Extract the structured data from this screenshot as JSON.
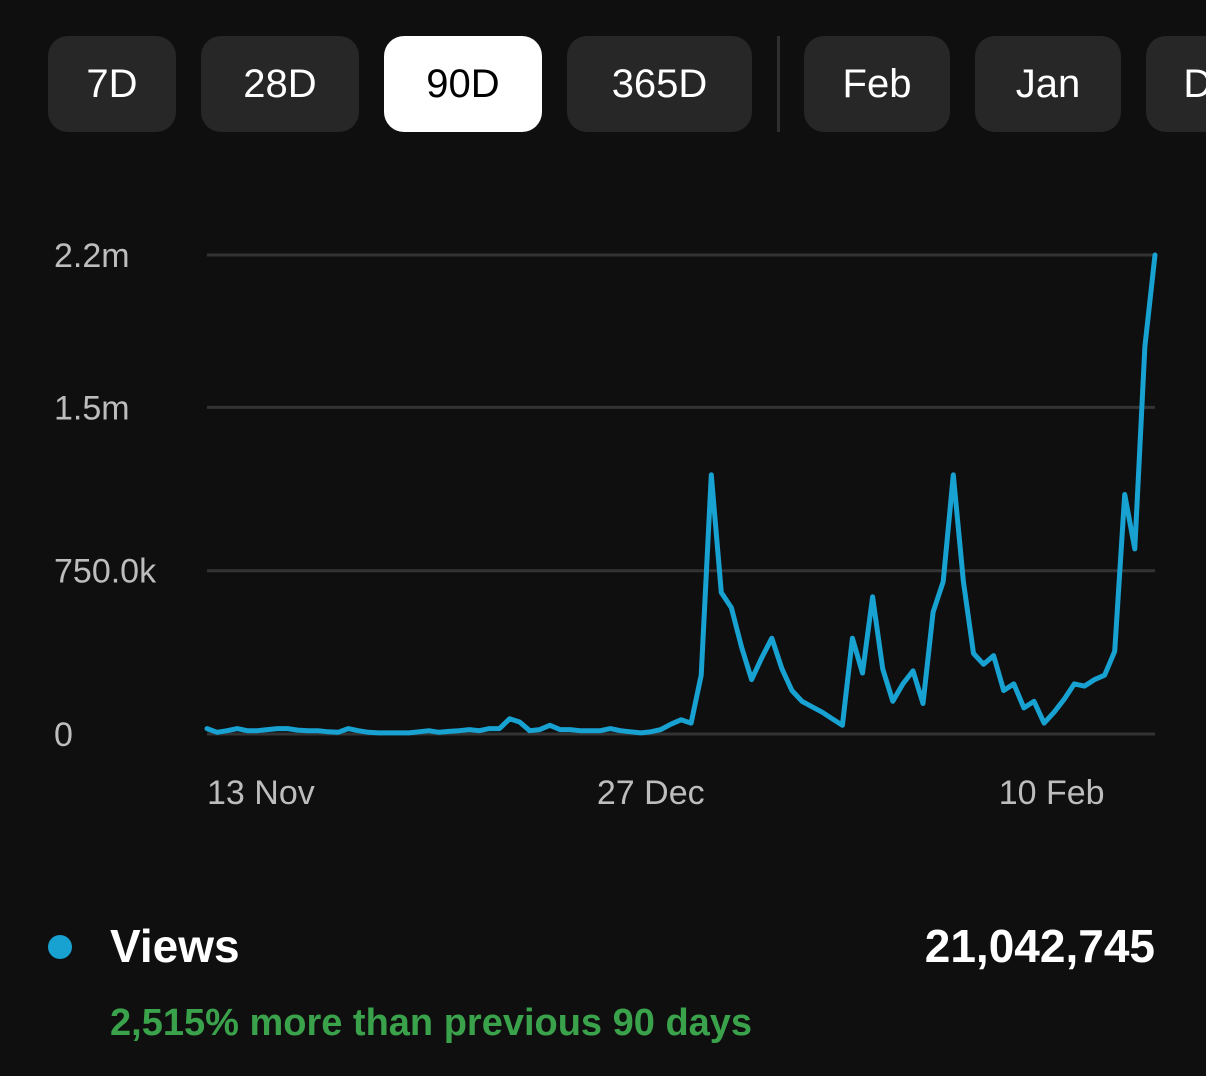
{
  "range_selector": {
    "options": [
      {
        "label": "7D",
        "selected": false
      },
      {
        "label": "28D",
        "selected": false
      },
      {
        "label": "90D",
        "selected": true
      },
      {
        "label": "365D",
        "selected": false
      }
    ],
    "months": [
      {
        "label": "Feb",
        "selected": false
      },
      {
        "label": "Jan",
        "selected": false
      },
      {
        "label": "Dec",
        "selected": false
      }
    ]
  },
  "colors": {
    "background": "#0f0f0f",
    "pill": "#272727",
    "pill_selected": "#ffffff",
    "series": "#17a2d2",
    "positive": "#3aa24b",
    "gridline": "#333333",
    "axis_text": "#bdbdbd"
  },
  "chart_data": {
    "type": "line",
    "ylim": [
      0,
      2200000
    ],
    "yticks": [
      {
        "value": 0,
        "label": "0"
      },
      {
        "value": 750000,
        "label": "750.0k"
      },
      {
        "value": 1500000,
        "label": "1.5m"
      },
      {
        "value": 2200000,
        "label": "2.2m"
      }
    ],
    "xticks": [
      {
        "index": 0,
        "label": "13 Nov"
      },
      {
        "index": 44,
        "label": "27 Dec"
      },
      {
        "index": 89,
        "label": "10 Feb"
      }
    ],
    "grid": true,
    "series": [
      {
        "name": "Views",
        "color": "#17a2d2",
        "values": [
          25000,
          8000,
          15000,
          25000,
          15000,
          15000,
          20000,
          25000,
          25000,
          18000,
          15000,
          15000,
          10000,
          8000,
          25000,
          15000,
          8000,
          5000,
          5000,
          5000,
          5000,
          10000,
          15000,
          8000,
          12000,
          15000,
          20000,
          15000,
          25000,
          25000,
          70000,
          55000,
          15000,
          20000,
          40000,
          20000,
          20000,
          15000,
          15000,
          15000,
          25000,
          15000,
          10000,
          5000,
          10000,
          20000,
          45000,
          65000,
          50000,
          270000,
          1190000,
          650000,
          580000,
          400000,
          250000,
          350000,
          440000,
          300000,
          200000,
          150000,
          125000,
          100000,
          70000,
          40000,
          440000,
          280000,
          630000,
          300000,
          150000,
          230000,
          290000,
          140000,
          560000,
          700000,
          1190000,
          700000,
          370000,
          320000,
          360000,
          200000,
          230000,
          120000,
          150000,
          50000,
          100000,
          160000,
          230000,
          220000,
          250000,
          270000,
          380000,
          1100000,
          850000,
          1780000,
          2200000
        ]
      }
    ]
  },
  "legend": {
    "label": "Views",
    "total": "21,042,745",
    "comparison": "2,515% more than previous 90 days"
  }
}
